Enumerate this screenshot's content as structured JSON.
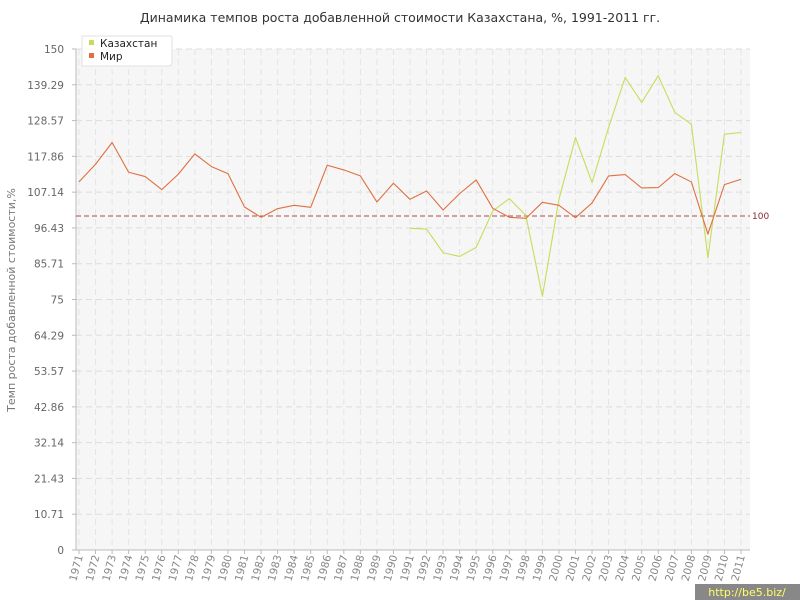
{
  "chart_data": {
    "type": "line",
    "title": "Динамика темпов роста добавленной стоимости Казахстана, %, 1991-2011 гг.",
    "ylabel": "Темп роста добавленной стоимости,%",
    "xlabel": "",
    "ylim": [
      0,
      150
    ],
    "yticks": [
      "0",
      "10.71",
      "21.43",
      "32.14",
      "42.86",
      "53.57",
      "64.29",
      "75",
      "85.71",
      "96.43",
      "107.14",
      "117.86",
      "128.57",
      "139.29",
      "150"
    ],
    "ytick_values": [
      0,
      10.71,
      21.43,
      32.14,
      42.86,
      53.57,
      64.29,
      75,
      85.71,
      96.43,
      107.14,
      117.86,
      128.57,
      139.29,
      150
    ],
    "x": [
      "1971",
      "1972",
      "1973",
      "1974",
      "1975",
      "1976",
      "1977",
      "1978",
      "1979",
      "1980",
      "1981",
      "1982",
      "1983",
      "1984",
      "1985",
      "1986",
      "1987",
      "1988",
      "1989",
      "1990",
      "1991",
      "1992",
      "1993",
      "1994",
      "1995",
      "1996",
      "1997",
      "1998",
      "1999",
      "2000",
      "2001",
      "2002",
      "2003",
      "2004",
      "2005",
      "2006",
      "2007",
      "2008",
      "2009",
      "2010",
      "2011"
    ],
    "grid": true,
    "legend_position": "top-left",
    "reference_line": {
      "value": 100,
      "label": "100",
      "color": "#b04a4a"
    },
    "series": [
      {
        "name": "Казахстан",
        "color": "#c6dd5a",
        "values": [
          null,
          null,
          null,
          null,
          null,
          null,
          null,
          null,
          null,
          null,
          null,
          null,
          null,
          null,
          null,
          null,
          null,
          null,
          null,
          null,
          96.3,
          96.1,
          89,
          87.9,
          90.6,
          101.5,
          105.2,
          100.2,
          76,
          105,
          123.5,
          110,
          126.5,
          141.5,
          134,
          142,
          131,
          127.5,
          87.5,
          124.5,
          125
        ]
      },
      {
        "name": "Мир",
        "color": "#e07040",
        "values": [
          110.2,
          115.5,
          122,
          113.1,
          111.8,
          107.9,
          112.5,
          118.6,
          114.8,
          112.7,
          102.7,
          99.6,
          102.2,
          103.2,
          102.6,
          115.2,
          113.8,
          112,
          104.2,
          109.8,
          105,
          107.5,
          101.8,
          106.7,
          110.8,
          102.3,
          99.6,
          99.3,
          104.1,
          103.2,
          99.5,
          103.9,
          112,
          112.4,
          108.4,
          108.5,
          112.7,
          110.2,
          94.6,
          109.4,
          111
        ]
      }
    ]
  },
  "watermark": "http://be5.biz/"
}
